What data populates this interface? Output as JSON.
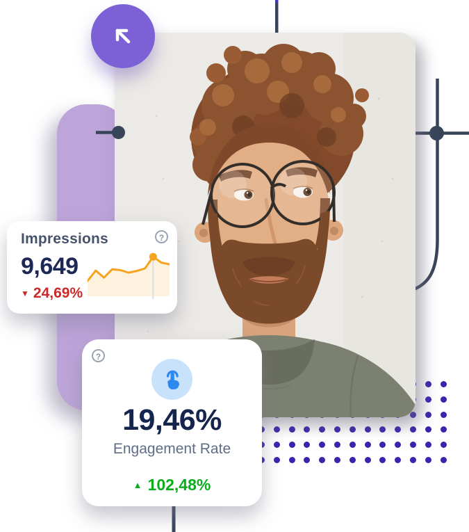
{
  "impressions_card": {
    "title": "Impressions",
    "value": "9,649",
    "delta": {
      "icon": "triangle-down",
      "text": "24,69%",
      "color": "#CB2A2A"
    },
    "help_icon": "question-mark",
    "chart": {
      "type": "line",
      "values": [
        30,
        55,
        38,
        58,
        56,
        50,
        54,
        60,
        88,
        74,
        70
      ],
      "marker_index": 8,
      "line_color": "#F6A41F",
      "area_color": "#FBEED3",
      "marker_color": "#F6A41F",
      "marker_guide_color": "#D9DDE4",
      "axes": "none"
    }
  },
  "engagement_card": {
    "help_icon": "question-mark",
    "metric_icon": "tap-gesture",
    "value": "19,46%",
    "label": "Engagement Rate",
    "delta": {
      "icon": "triangle-up",
      "text": "102,48%",
      "color": "#0AAE1C"
    }
  },
  "decorations": {
    "arrow_button_icon": "arrow-up-left",
    "accent_purple": "#7C60D6",
    "lavender": "#BDA4D9",
    "line_navy": "#384458",
    "line_tip_purple": "#4B35C7",
    "dot_indigo": "#3B23AE",
    "dot_grid": {
      "cols": 13,
      "rows": 6,
      "spacing": 21.8,
      "dot_size": 9
    }
  }
}
